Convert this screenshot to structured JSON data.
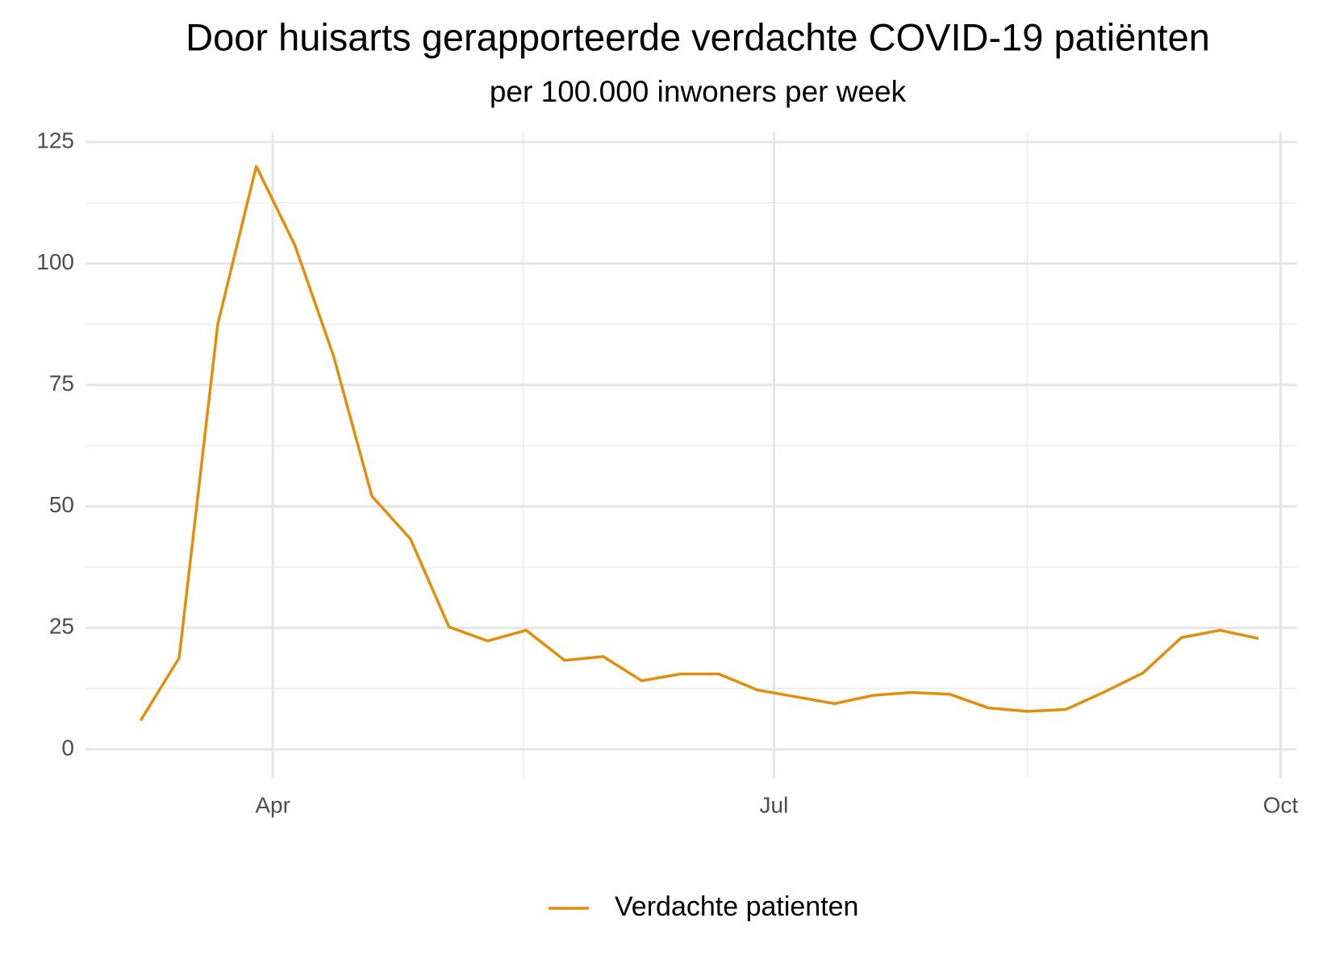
{
  "chart_data": {
    "type": "line",
    "title": "Door huisarts gerapporteerde verdachte COVID-19 patiënten",
    "subtitle": "per 100.000 inwoners per week",
    "x": [
      68,
      75,
      82,
      89,
      96,
      103,
      110,
      117,
      124,
      131,
      138,
      145,
      152,
      159,
      166,
      173,
      180,
      187,
      194,
      201,
      208,
      215,
      222,
      229,
      236,
      243,
      250,
      257,
      264,
      271
    ],
    "series": [
      {
        "name": "Verdachte patienten",
        "color": "#e08e0b",
        "values": [
          5.9,
          18.8,
          87.4,
          120,
          103.8,
          81.1,
          52.1,
          43.3,
          25.2,
          22.3,
          24.5,
          18.3,
          19.1,
          14.1,
          15.5,
          15.5,
          12.2,
          10.8,
          9.4,
          11.1,
          11.7,
          11.3,
          8.5,
          7.8,
          8.2,
          11.8,
          15.7,
          23.0,
          24.5,
          22.8
        ]
      }
    ],
    "xlim": [
      58,
      278
    ],
    "xticks": [
      {
        "value": 92,
        "label": "Apr"
      },
      {
        "value": 183,
        "label": "Jul"
      },
      {
        "value": 275,
        "label": "Oct"
      }
    ],
    "ylim": [
      -6,
      127
    ],
    "yticks": [
      0,
      25,
      50,
      75,
      100,
      125
    ],
    "grid": true,
    "legend": "bottom"
  }
}
